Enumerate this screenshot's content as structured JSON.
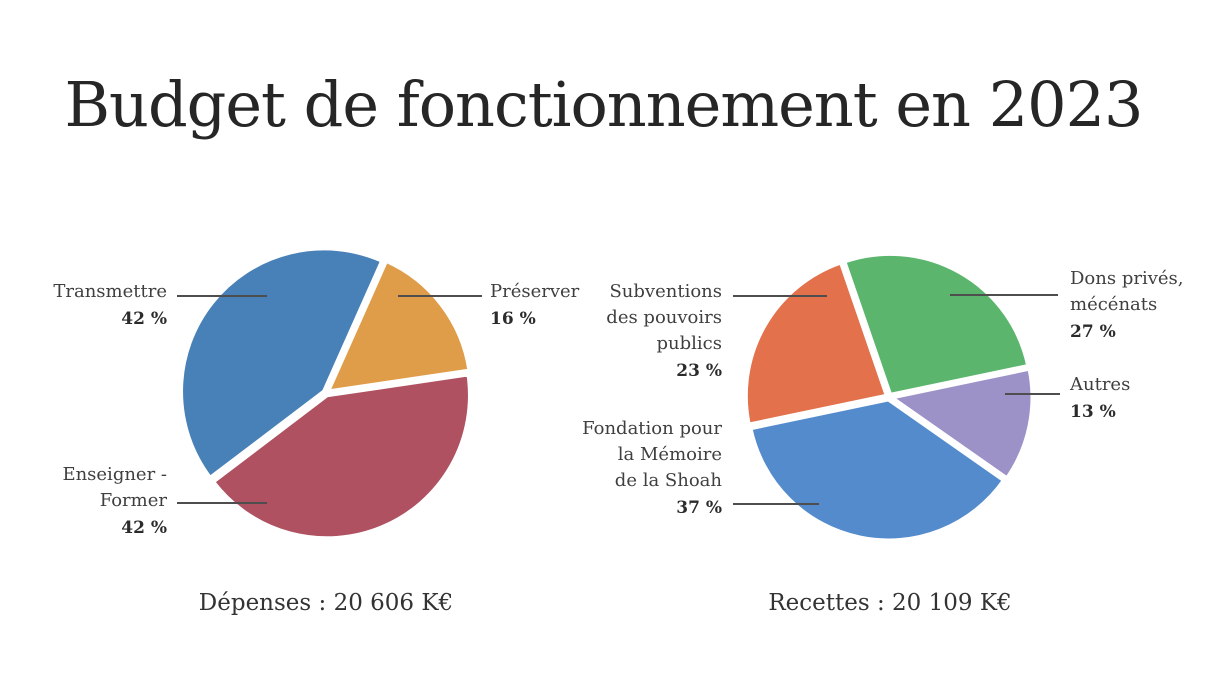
{
  "title": "Budget de fonctionnement en 2023",
  "chart_data": [
    {
      "type": "pie",
      "name": "depenses",
      "caption": "Dépenses : 20 606 K€",
      "total_label": "20 606 K€",
      "start_angle_deg": 24,
      "labels_style": "callouts-with-leader-lines",
      "slices": [
        {
          "label": "Préserver",
          "value_pct": 16,
          "pct_label": "16 %",
          "label_lines": [
            "Préserver"
          ],
          "color": "#DF9D49"
        },
        {
          "label": "Enseigner - Former",
          "value_pct": 42,
          "pct_label": "42 %",
          "label_lines": [
            "Enseigner -",
            "Former"
          ],
          "color": "#AF5161"
        },
        {
          "label": "Transmettre",
          "value_pct": 42,
          "pct_label": "42 %",
          "label_lines": [
            "Transmettre"
          ],
          "color": "#4880B8"
        }
      ]
    },
    {
      "type": "pie",
      "name": "recettes",
      "caption": "Recettes : 20 109 K€",
      "total_label": "20 109 K€",
      "start_angle_deg": 341,
      "labels_style": "callouts-with-leader-lines",
      "slices": [
        {
          "label": "Dons privés, mécénats",
          "value_pct": 27,
          "pct_label": "27 %",
          "label_lines": [
            "Dons privés,",
            "mécénats"
          ],
          "color": "#5CB56C"
        },
        {
          "label": "Autres",
          "value_pct": 13,
          "pct_label": "13 %",
          "label_lines": [
            "Autres"
          ],
          "color": "#9C92C8"
        },
        {
          "label": "Fondation pour la Mémoire de la Shoah",
          "value_pct": 37,
          "pct_label": "37 %",
          "label_lines": [
            "Fondation pour",
            "la Mémoire",
            "de la Shoah"
          ],
          "color": "#548BCC"
        },
        {
          "label": "Subventions des pouvoirs publics",
          "value_pct": 23,
          "pct_label": "23 %",
          "label_lines": [
            "Subventions",
            "des pouvoirs",
            "publics"
          ],
          "color": "#E2714C"
        }
      ]
    }
  ]
}
